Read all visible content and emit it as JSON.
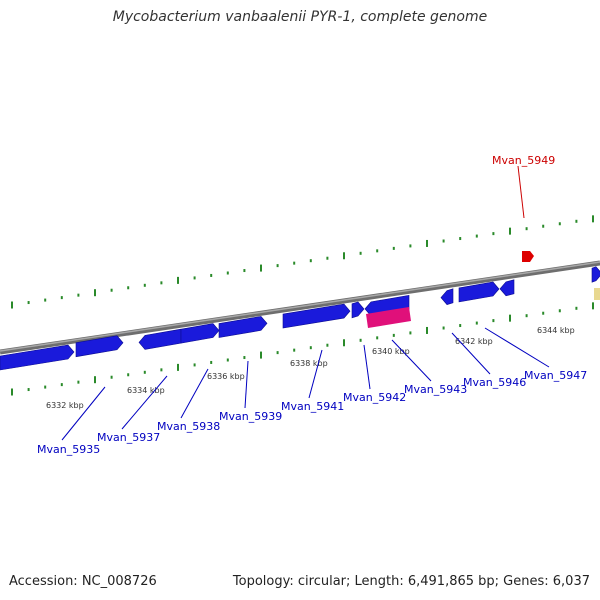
{
  "title": "Mycobacterium vanbaalenii PYR-1, complete genome",
  "footer": {
    "accession": "Accession: NC_008726",
    "stats": "Topology: circular; Length: 6,491,865 bp; Genes: 6,037"
  },
  "colors": {
    "backbone": "#7f7f7f",
    "tick": "#2a8a2a",
    "gene_forward": "#1a1adb",
    "gene_reverse": "#1a1adb",
    "gene_highlight_red": "#dd0000",
    "gene_rna_pink": "#e0107a",
    "gene_other_yellow": "#e8d890",
    "label_blue": "#0000c0",
    "label_red": "#cc0000"
  },
  "ruler_labels": [
    "6332 kbp",
    "6334 kbp",
    "6336 kbp",
    "6338 kbp",
    "6340 kbp",
    "6342 kbp",
    "6344 kbp"
  ],
  "gene_labels": [
    "Mvan_5935",
    "Mvan_5937",
    "Mvan_5938",
    "Mvan_5939",
    "Mvan_5941",
    "Mvan_5942",
    "Mvan_5943",
    "Mvan_5946",
    "Mvan_5947",
    "Mvan_5949"
  ],
  "highlight_gene": "Mvan_5949"
}
